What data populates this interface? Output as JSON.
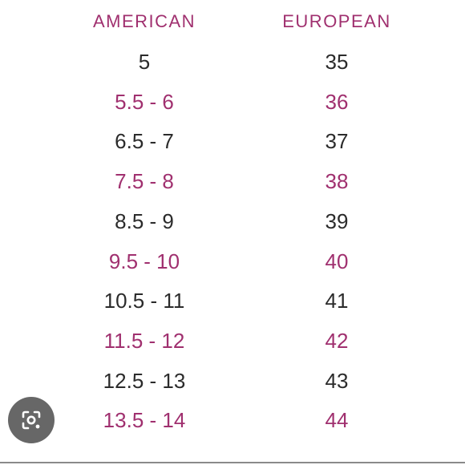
{
  "colors": {
    "accent": "#a0306f",
    "text_dark": "#2b2b2b",
    "lens_button_bg": "#3c3c3c"
  },
  "table": {
    "headers": {
      "american": "AMERICAN",
      "european": "EUROPEAN"
    },
    "rows": [
      {
        "american": "5",
        "european": "35",
        "highlight": false
      },
      {
        "american": "5.5 - 6",
        "european": "36",
        "highlight": true
      },
      {
        "american": "6.5 - 7",
        "european": "37",
        "highlight": false
      },
      {
        "american": "7.5 - 8",
        "european": "38",
        "highlight": true
      },
      {
        "american": "8.5 - 9",
        "european": "39",
        "highlight": false
      },
      {
        "american": "9.5 - 10",
        "european": "40",
        "highlight": true
      },
      {
        "american": "10.5 - 11",
        "european": "41",
        "highlight": false
      },
      {
        "american": "11.5 - 12",
        "european": "42",
        "highlight": true
      },
      {
        "american": "12.5 - 13",
        "european": "43",
        "highlight": false
      },
      {
        "american": "13.5 - 14",
        "european": "44",
        "highlight": true
      }
    ]
  },
  "overlay": {
    "lens_icon": "camera-search-icon"
  }
}
